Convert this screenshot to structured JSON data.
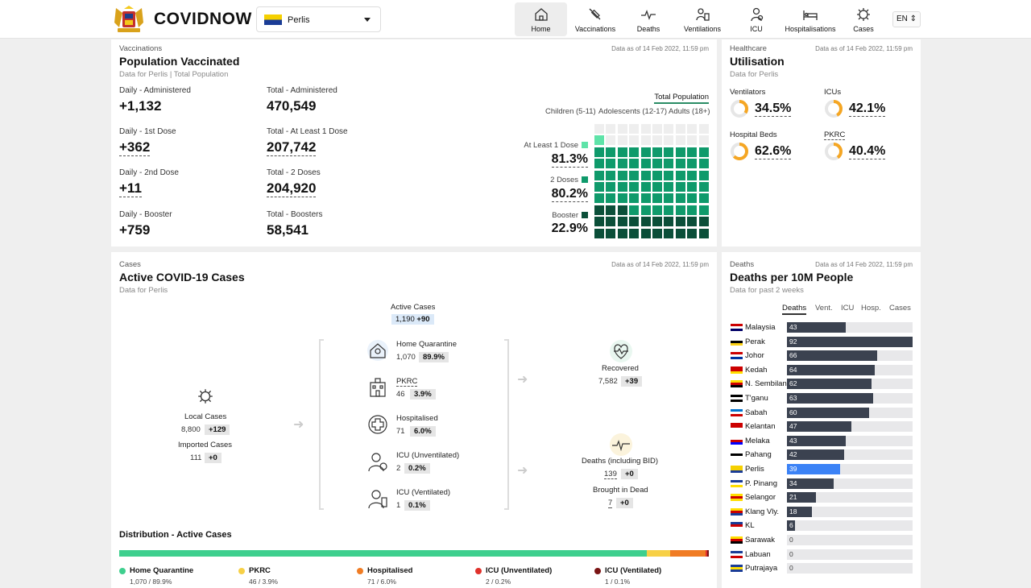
{
  "header": {
    "brand": "COVIDNOW",
    "state": "Perlis",
    "lang": "EN",
    "nav": [
      {
        "label": "Home",
        "icon": "home-icon",
        "active": true
      },
      {
        "label": "Vaccinations",
        "icon": "syringe-icon",
        "active": false
      },
      {
        "label": "Deaths",
        "icon": "pulse-icon",
        "active": false
      },
      {
        "label": "Ventilations",
        "icon": "ventilator-icon",
        "active": false
      },
      {
        "label": "ICU",
        "icon": "icu-icon",
        "active": false
      },
      {
        "label": "Hospitalisations",
        "icon": "hospital-bed-icon",
        "active": false
      },
      {
        "label": "Cases",
        "icon": "virus-icon",
        "active": false
      }
    ]
  },
  "vaccinations": {
    "eyebrow": "Vaccinations",
    "title": "Population Vaccinated",
    "subtitle_a": "Data for Perlis",
    "subtitle_b": "Total Population",
    "date": "Data as of 14 Feb 2022, 11:59 pm",
    "stats": [
      {
        "label": "Daily - Administered",
        "value": "+1,132"
      },
      {
        "label": "Total - Administered",
        "value": "470,549"
      },
      {
        "label": "Daily - 1st Dose",
        "value": "+362"
      },
      {
        "label": "Total - At Least 1 Dose",
        "value": "207,742"
      },
      {
        "label": "Daily - 2nd Dose",
        "value": "+11"
      },
      {
        "label": "Total - 2 Doses",
        "value": "204,920"
      },
      {
        "label": "Daily - Booster",
        "value": "+759"
      },
      {
        "label": "Total - Boosters",
        "value": "58,541"
      }
    ],
    "pop_tab": "Total Population",
    "age_tabs": [
      "Children (5-11)",
      "Adolescents (12-17)",
      "Adults (18+)"
    ],
    "doses": [
      {
        "label": "At Least 1 Dose",
        "pct": "81.3%",
        "value": 81.3,
        "color": "#5ee3a8"
      },
      {
        "label": "2 Doses",
        "pct": "80.2%",
        "value": 80.2,
        "color": "#0f9a6b"
      },
      {
        "label": "Booster",
        "pct": "22.9%",
        "value": 22.9,
        "color": "#0b4f39"
      }
    ]
  },
  "utilisation": {
    "eyebrow": "Healthcare",
    "title": "Utilisation",
    "subtitle": "Data for Perlis",
    "date": "Data as of 14 Feb 2022, 11:59 pm",
    "items": [
      {
        "label": "Ventilators",
        "pct": "34.5%",
        "value": 34.5
      },
      {
        "label": "ICUs",
        "pct": "42.1%",
        "value": 42.1
      },
      {
        "label": "Hospital Beds",
        "pct": "62.6%",
        "value": 62.6
      },
      {
        "label": "PKRC",
        "pct": "40.4%",
        "value": 40.4
      }
    ],
    "ring_color": "#f5a623",
    "track_color": "#e6e6e6"
  },
  "cases": {
    "eyebrow": "Cases",
    "title": "Active COVID-19 Cases",
    "subtitle": "Data for Perlis",
    "date": "Data as of 14 Feb 2022, 11:59 pm",
    "active": {
      "label": "Active Cases",
      "value": "1,190",
      "delta": "+90"
    },
    "local": {
      "label": "Local Cases",
      "value": "8,800",
      "delta": "+129"
    },
    "imported": {
      "label": "Imported Cases",
      "value": "111",
      "delta": "+0"
    },
    "middle": [
      {
        "label": "Home Quarantine",
        "value": "1,070",
        "pct": "89.9%",
        "icon": "home-quarantine-icon"
      },
      {
        "label": "PKRC",
        "value": "46",
        "pct": "3.9%",
        "icon": "pkrc-building-icon"
      },
      {
        "label": "Hospitalised",
        "value": "71",
        "pct": "6.0%",
        "icon": "hospital-cross-icon"
      },
      {
        "label": "ICU (Unventilated)",
        "value": "2",
        "pct": "0.2%",
        "icon": "icu-patient-icon"
      },
      {
        "label": "ICU (Ventilated)",
        "value": "1",
        "pct": "0.1%",
        "icon": "ventilated-patient-icon"
      }
    ],
    "recovered": {
      "label": "Recovered",
      "value": "7,582",
      "delta": "+39"
    },
    "deaths": {
      "label": "Deaths (including BID)",
      "value": "139",
      "delta": "+0"
    },
    "bid": {
      "label": "Brought in Dead",
      "value": "7",
      "delta": "+0"
    },
    "distribution": {
      "title": "Distribution - Active Cases",
      "items": [
        {
          "name": "Home Quarantine",
          "text": "1,070 / 89.9%",
          "value": 89.9,
          "color": "#3ecf8e"
        },
        {
          "name": "PKRC",
          "text": "46 / 3.9%",
          "value": 3.9,
          "color": "#f7d046"
        },
        {
          "name": "Hospitalised",
          "text": "71 / 6.0%",
          "value": 6.0,
          "color": "#f07c24"
        },
        {
          "name": "ICU (Unventilated)",
          "text": "2 / 0.2%",
          "value": 0.2,
          "color": "#e0312b"
        },
        {
          "name": "ICU (Ventilated)",
          "text": "1 / 0.1%",
          "value": 0.1,
          "color": "#7a1414"
        }
      ]
    }
  },
  "deaths10m": {
    "eyebrow": "Deaths",
    "title": "Deaths per 10M People",
    "subtitle": "Data for past 2 weeks",
    "date": "Data as of 14 Feb 2022, 11:59 pm",
    "tabs": [
      "Deaths",
      "Vent.",
      "ICU",
      "Hosp.",
      "Cases"
    ],
    "highlight": "Perlis",
    "max": 92,
    "rows": [
      {
        "name": "Malaysia",
        "value": 43,
        "label": "43"
      },
      {
        "name": "Perak",
        "value": 92,
        "label": "92"
      },
      {
        "name": "Johor",
        "value": 66,
        "label": "66"
      },
      {
        "name": "Kedah",
        "value": 64,
        "label": "64"
      },
      {
        "name": "N. Sembilan",
        "value": 62,
        "label": "62"
      },
      {
        "name": "T'ganu",
        "value": 63,
        "label": "63"
      },
      {
        "name": "Sabah",
        "value": 60,
        "label": "60"
      },
      {
        "name": "Kelantan",
        "value": 47,
        "label": "47"
      },
      {
        "name": "Melaka",
        "value": 43,
        "label": "43"
      },
      {
        "name": "Pahang",
        "value": 42,
        "label": "42"
      },
      {
        "name": "Perlis",
        "value": 39,
        "label": "39"
      },
      {
        "name": "P. Pinang",
        "value": 34,
        "label": "34"
      },
      {
        "name": "Selangor",
        "value": 21,
        "label": "21"
      },
      {
        "name": "Klang Vly.",
        "value": 18,
        "label": "18"
      },
      {
        "name": "KL",
        "value": 6,
        "label": "6"
      },
      {
        "name": "Sarawak",
        "value": 0,
        "label": "0"
      },
      {
        "name": "Labuan",
        "value": 0,
        "label": "0"
      },
      {
        "name": "Putrajaya",
        "value": 0,
        "label": "0"
      }
    ]
  }
}
